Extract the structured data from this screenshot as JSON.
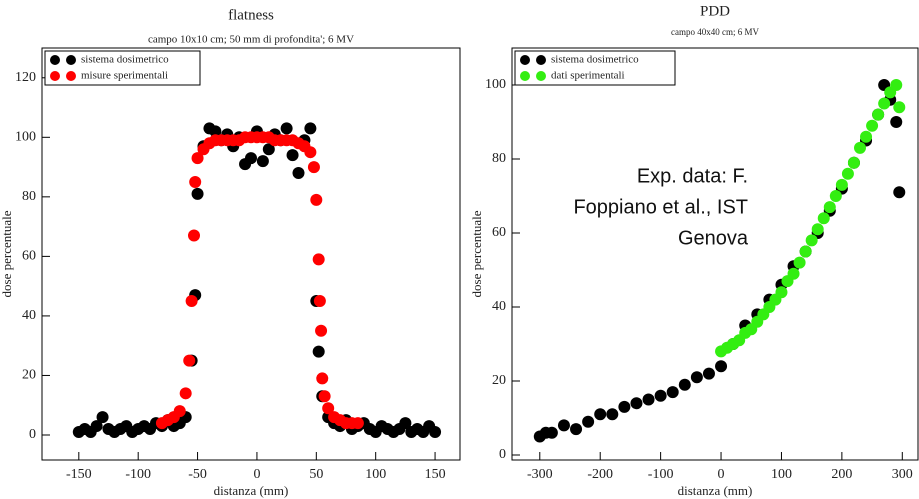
{
  "chart_data": [
    {
      "type": "scatter",
      "title": "flatness",
      "subtitle": "campo 10x10 cm; 50 mm di profondita'; 6 MV",
      "x_label": "distanza (mm)",
      "y_label": "dose percentuale",
      "xlim": [
        -181,
        171
      ],
      "ylim": [
        -8.4,
        130
      ],
      "xticks": [
        -150,
        -100,
        -50,
        0,
        50,
        100,
        150
      ],
      "yticks": [
        0,
        20,
        40,
        60,
        80,
        100,
        120
      ],
      "legend": "top-left",
      "series": [
        {
          "name": "sistema dosimetrico",
          "color": "#000000",
          "x": [
            -150,
            -145,
            -140,
            -135,
            -130,
            -125,
            -120,
            -115,
            -110,
            -105,
            -100,
            -95,
            -90,
            -85,
            -80,
            -75,
            -70,
            -65,
            -60,
            -55,
            -52,
            -50,
            -45,
            -40,
            -35,
            -30,
            -25,
            -20,
            -15,
            -10,
            -5,
            0,
            5,
            10,
            15,
            20,
            25,
            30,
            35,
            40,
            45,
            50,
            52,
            55,
            60,
            65,
            70,
            75,
            80,
            85,
            90,
            95,
            100,
            105,
            110,
            115,
            120,
            125,
            130,
            135,
            140,
            145,
            150
          ],
          "values": [
            1,
            2,
            1,
            3,
            6,
            2,
            1,
            2,
            3,
            1,
            2,
            3,
            2,
            4,
            3,
            5,
            3,
            4,
            6,
            25,
            47,
            81,
            97,
            103,
            102,
            99,
            101,
            97,
            100,
            91,
            93,
            102,
            92,
            96,
            101,
            99,
            103,
            94,
            88,
            99,
            103,
            45,
            28,
            13,
            6,
            4,
            3,
            5,
            2,
            3,
            4,
            2,
            1,
            3,
            2,
            1,
            2,
            4,
            1,
            2,
            1,
            3,
            1
          ]
        },
        {
          "name": "misure sperimentali",
          "color": "#ff0000",
          "x": [
            -80,
            -75,
            -70,
            -65,
            -60,
            -57,
            -55,
            -53,
            -52,
            -50,
            -45,
            -40,
            -35,
            -30,
            -25,
            -20,
            -15,
            -10,
            -5,
            0,
            5,
            10,
            15,
            20,
            25,
            30,
            35,
            40,
            45,
            48,
            50,
            52,
            53,
            54,
            55,
            57,
            60,
            65,
            70,
            75,
            80,
            85
          ],
          "values": [
            4,
            5,
            6,
            8,
            14,
            25,
            45,
            67,
            85,
            93,
            96,
            98,
            99,
            99,
            99,
            99,
            99,
            100,
            100,
            100,
            100,
            100,
            99,
            99,
            99,
            99,
            98,
            97,
            95,
            90,
            79,
            59,
            45,
            35,
            19,
            13,
            9,
            6,
            5,
            4,
            4,
            4
          ]
        }
      ]
    },
    {
      "type": "scatter",
      "title": "PDD",
      "subtitle": "campo 40x40 cm; 6 MV",
      "x_label": "distanza (mm)",
      "y_label": "dose percentuale",
      "xlim": [
        -346,
        326
      ],
      "ylim": [
        -1.35,
        110
      ],
      "xticks": [
        -300,
        -200,
        -100,
        0,
        100,
        200,
        300
      ],
      "yticks": [
        0,
        20,
        40,
        60,
        80,
        100
      ],
      "legend": "top-left",
      "annotation": [
        "Exp. data: F.",
        "Foppiano et al., IST",
        "Genova"
      ],
      "series": [
        {
          "name": "sistema dosimetrico",
          "color": "#000000",
          "x": [
            -300,
            -290,
            -280,
            -260,
            -240,
            -220,
            -200,
            -180,
            -160,
            -140,
            -120,
            -100,
            -80,
            -60,
            -40,
            -20,
            0,
            20,
            40,
            60,
            80,
            100,
            120,
            140,
            160,
            180,
            200,
            220,
            240,
            260,
            270,
            280,
            290,
            295
          ],
          "values": [
            5,
            6,
            6,
            8,
            7,
            9,
            11,
            11,
            13,
            14,
            15,
            16,
            17,
            19,
            21,
            22,
            24,
            30,
            35,
            38,
            42,
            46,
            51,
            55,
            60,
            66,
            72,
            79,
            85,
            92,
            100,
            96,
            90,
            71
          ]
        },
        {
          "name": "dati sperimentali",
          "color": "#33ee11",
          "x": [
            0,
            10,
            20,
            30,
            40,
            50,
            60,
            70,
            80,
            90,
            100,
            110,
            120,
            130,
            140,
            150,
            160,
            170,
            180,
            190,
            200,
            210,
            220,
            230,
            240,
            250,
            260,
            270,
            280,
            290,
            295
          ],
          "values": [
            28,
            29,
            30,
            31,
            33,
            34,
            36,
            38,
            40,
            42,
            44,
            47,
            49,
            52,
            55,
            58,
            61,
            64,
            67,
            70,
            73,
            76,
            79,
            83,
            86,
            89,
            92,
            95,
            98,
            100,
            94
          ]
        }
      ]
    }
  ]
}
